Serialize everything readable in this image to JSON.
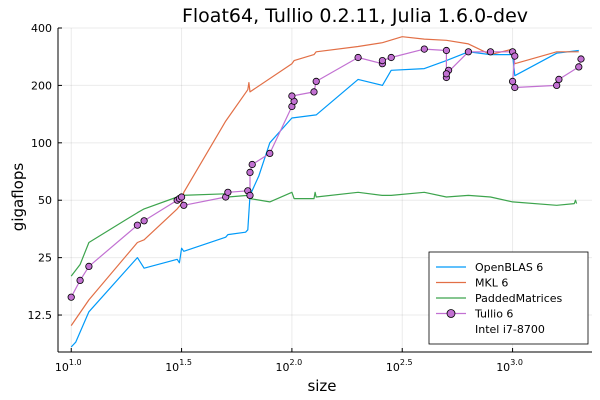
{
  "chart_data": {
    "type": "line",
    "title": "Float64, Tullio 0.2.11, Julia 1.6.0-dev",
    "xlabel": "size",
    "ylabel": "gigaflops",
    "x_scale": "log10",
    "y_scale": "log",
    "xlim": [
      0.94,
      3.36
    ],
    "ylim": [
      8,
      400
    ],
    "x_ticks": [
      {
        "value": 1.0,
        "base": "10",
        "exp": "1.0"
      },
      {
        "value": 1.5,
        "base": "10",
        "exp": "1.5"
      },
      {
        "value": 2.0,
        "base": "10",
        "exp": "2.0"
      },
      {
        "value": 2.5,
        "base": "10",
        "exp": "2.5"
      },
      {
        "value": 3.0,
        "base": "10",
        "exp": "3.0"
      }
    ],
    "y_ticks": [
      {
        "value": 12.5,
        "label": "12.5"
      },
      {
        "value": 25,
        "label": "25"
      },
      {
        "value": 50,
        "label": "50"
      },
      {
        "value": 100,
        "label": "100"
      },
      {
        "value": 200,
        "label": "200"
      },
      {
        "value": 400,
        "label": "400"
      }
    ],
    "grid": true,
    "legend_position": "bottom-right",
    "legend_note": "Intel i7-8700",
    "series": [
      {
        "name": "OpenBLAS 6",
        "color": "#009af9",
        "style": "line",
        "points": [
          [
            1.0,
            8.5
          ],
          [
            1.02,
            9
          ],
          [
            1.08,
            13
          ],
          [
            1.3,
            25
          ],
          [
            1.33,
            22
          ],
          [
            1.48,
            24.5
          ],
          [
            1.49,
            23.5
          ],
          [
            1.5,
            28
          ],
          [
            1.51,
            27
          ],
          [
            1.7,
            32
          ],
          [
            1.71,
            33
          ],
          [
            1.79,
            34
          ],
          [
            1.8,
            35
          ],
          [
            1.81,
            53
          ],
          [
            1.85,
            67
          ],
          [
            1.9,
            100
          ],
          [
            2.0,
            135
          ],
          [
            2.11,
            140
          ],
          [
            2.3,
            215
          ],
          [
            2.41,
            200
          ],
          [
            2.45,
            240
          ],
          [
            2.6,
            245
          ],
          [
            2.7,
            270
          ],
          [
            2.8,
            300
          ],
          [
            2.9,
            290
          ],
          [
            3.0,
            290
          ],
          [
            3.01,
            225
          ],
          [
            3.2,
            295
          ],
          [
            3.3,
            305
          ]
        ]
      },
      {
        "name": "MKL 6",
        "color": "#e26f46",
        "style": "line",
        "points": [
          [
            1.0,
            11
          ],
          [
            1.08,
            15
          ],
          [
            1.3,
            30
          ],
          [
            1.33,
            31
          ],
          [
            1.48,
            45
          ],
          [
            1.5,
            48
          ],
          [
            1.51,
            55
          ],
          [
            1.7,
            130
          ],
          [
            1.8,
            190
          ],
          [
            1.805,
            207
          ],
          [
            1.81,
            185
          ],
          [
            2.0,
            260
          ],
          [
            2.01,
            270
          ],
          [
            2.1,
            290
          ],
          [
            2.11,
            300
          ],
          [
            2.3,
            320
          ],
          [
            2.41,
            335
          ],
          [
            2.5,
            360
          ],
          [
            2.6,
            350
          ],
          [
            2.7,
            345
          ],
          [
            2.8,
            330
          ],
          [
            2.9,
            290
          ],
          [
            3.0,
            310
          ],
          [
            3.01,
            260
          ],
          [
            3.2,
            300
          ],
          [
            3.3,
            300
          ]
        ]
      },
      {
        "name": "PaddedMatrices",
        "color": "#3da44d",
        "style": "line",
        "points": [
          [
            1.0,
            20
          ],
          [
            1.04,
            23
          ],
          [
            1.08,
            30
          ],
          [
            1.3,
            43
          ],
          [
            1.33,
            45
          ],
          [
            1.48,
            52
          ],
          [
            1.5,
            53
          ],
          [
            1.7,
            54
          ],
          [
            1.71,
            52
          ],
          [
            1.8,
            53
          ],
          [
            1.81,
            51
          ],
          [
            1.9,
            49
          ],
          [
            2.0,
            55
          ],
          [
            2.01,
            51
          ],
          [
            2.1,
            51
          ],
          [
            2.105,
            55
          ],
          [
            2.11,
            52
          ],
          [
            2.3,
            55
          ],
          [
            2.41,
            53
          ],
          [
            2.45,
            53
          ],
          [
            2.6,
            55
          ],
          [
            2.7,
            52
          ],
          [
            2.8,
            53
          ],
          [
            2.9,
            52
          ],
          [
            3.0,
            49
          ],
          [
            3.2,
            47
          ],
          [
            3.28,
            48
          ],
          [
            3.285,
            50
          ],
          [
            3.29,
            48
          ]
        ]
      },
      {
        "name": "Tullio 6",
        "color": "#c271d2",
        "style": "line-markers",
        "points": [
          [
            1.0,
            15.5
          ],
          [
            1.04,
            19
          ],
          [
            1.08,
            22.5
          ],
          [
            1.3,
            37
          ],
          [
            1.33,
            39
          ],
          [
            1.48,
            50
          ],
          [
            1.49,
            51
          ],
          [
            1.5,
            52
          ],
          [
            1.51,
            47
          ],
          [
            1.7,
            52
          ],
          [
            1.71,
            55
          ],
          [
            1.8,
            56
          ],
          [
            1.81,
            53
          ],
          [
            1.81,
            70
          ],
          [
            1.82,
            77
          ],
          [
            1.9,
            88
          ],
          [
            2.0,
            155
          ],
          [
            2.01,
            165
          ],
          [
            2.0,
            176
          ],
          [
            2.1,
            185
          ],
          [
            2.11,
            210
          ],
          [
            2.3,
            280
          ],
          [
            2.41,
            260
          ],
          [
            2.41,
            270
          ],
          [
            2.45,
            280
          ],
          [
            2.6,
            310
          ],
          [
            2.7,
            305
          ],
          [
            2.7,
            220
          ],
          [
            2.71,
            240
          ],
          [
            2.7,
            230
          ],
          [
            2.8,
            300
          ],
          [
            2.9,
            300
          ],
          [
            3.0,
            300
          ],
          [
            3.01,
            285
          ],
          [
            3.0,
            210
          ],
          [
            3.01,
            195
          ],
          [
            3.2,
            200
          ],
          [
            3.21,
            215
          ],
          [
            3.3,
            250
          ],
          [
            3.31,
            275
          ]
        ]
      }
    ]
  }
}
